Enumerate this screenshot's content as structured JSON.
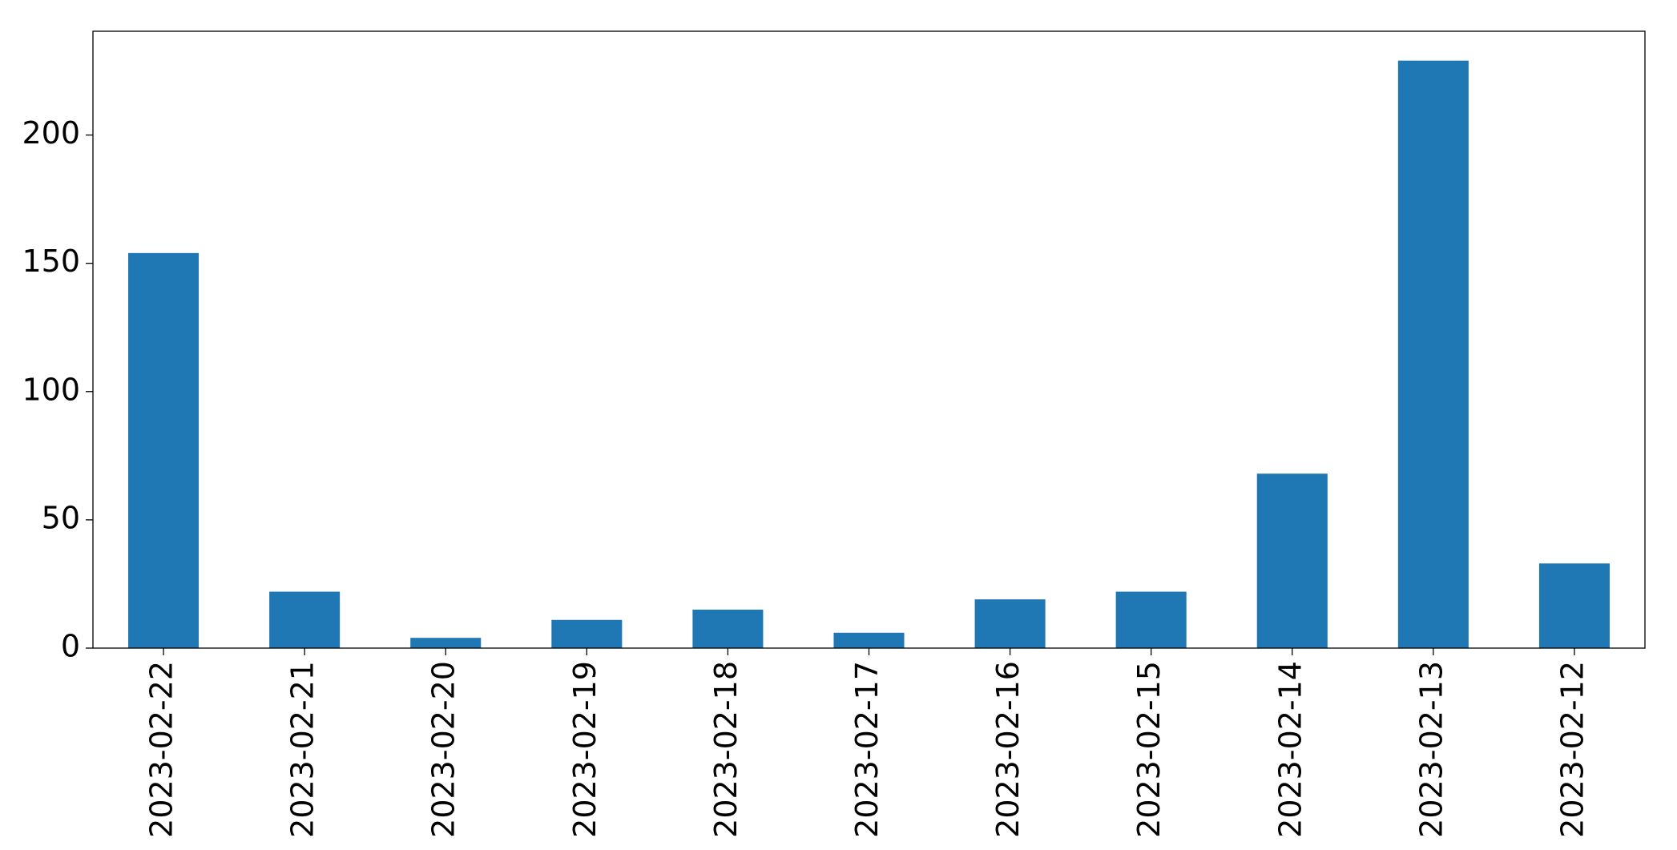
{
  "chart_data": {
    "type": "bar",
    "categories": [
      "2023-02-22",
      "2023-02-21",
      "2023-02-20",
      "2023-02-19",
      "2023-02-18",
      "2023-02-17",
      "2023-02-16",
      "2023-02-15",
      "2023-02-14",
      "2023-02-13",
      "2023-02-12"
    ],
    "values": [
      154,
      22,
      4,
      11,
      15,
      6,
      19,
      22,
      68,
      229,
      33
    ],
    "color": "#1f77b4",
    "ylim": [
      0,
      240.45
    ],
    "yticks": [
      0,
      50,
      100,
      150,
      200
    ],
    "grid": false
  }
}
